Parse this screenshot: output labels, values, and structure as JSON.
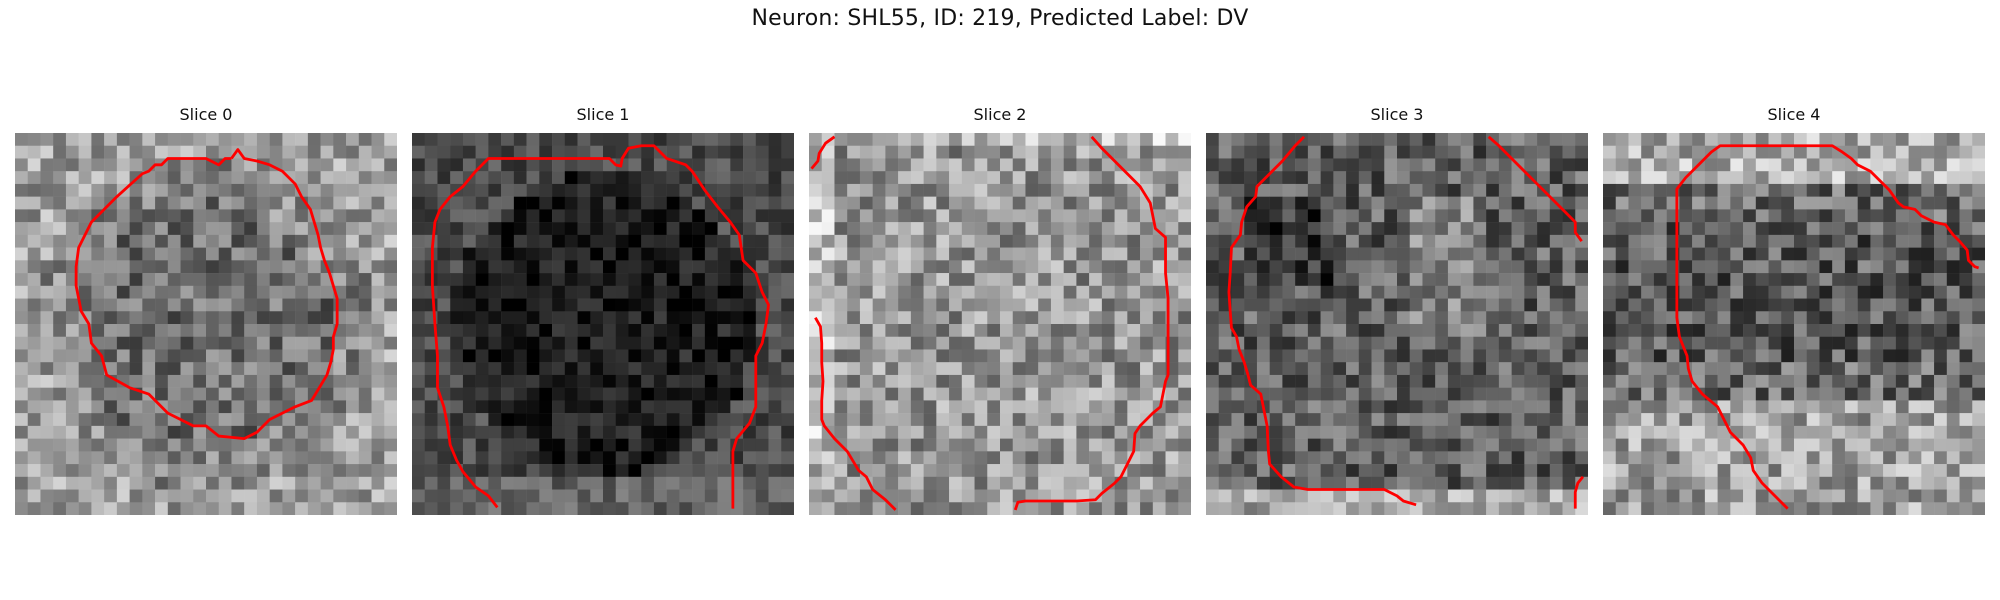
{
  "figure": {
    "title": "Neuron: SHL55, ID: 219, Predicted Label: DV"
  },
  "panels": [
    {
      "label": "Slice 0",
      "base": 125,
      "contrast": 55,
      "seed": 11
    },
    {
      "label": "Slice 1",
      "base": 40,
      "contrast": 35,
      "seed": 23
    },
    {
      "label": "Slice 2",
      "base": 150,
      "contrast": 60,
      "seed": 37
    },
    {
      "label": "Slice 3",
      "base": 95,
      "contrast": 55,
      "seed": 51
    },
    {
      "label": "Slice 4",
      "base": 105,
      "contrast": 60,
      "seed": 67
    }
  ],
  "colors": {
    "contour": "#ff0000",
    "background": "#ffffff"
  }
}
